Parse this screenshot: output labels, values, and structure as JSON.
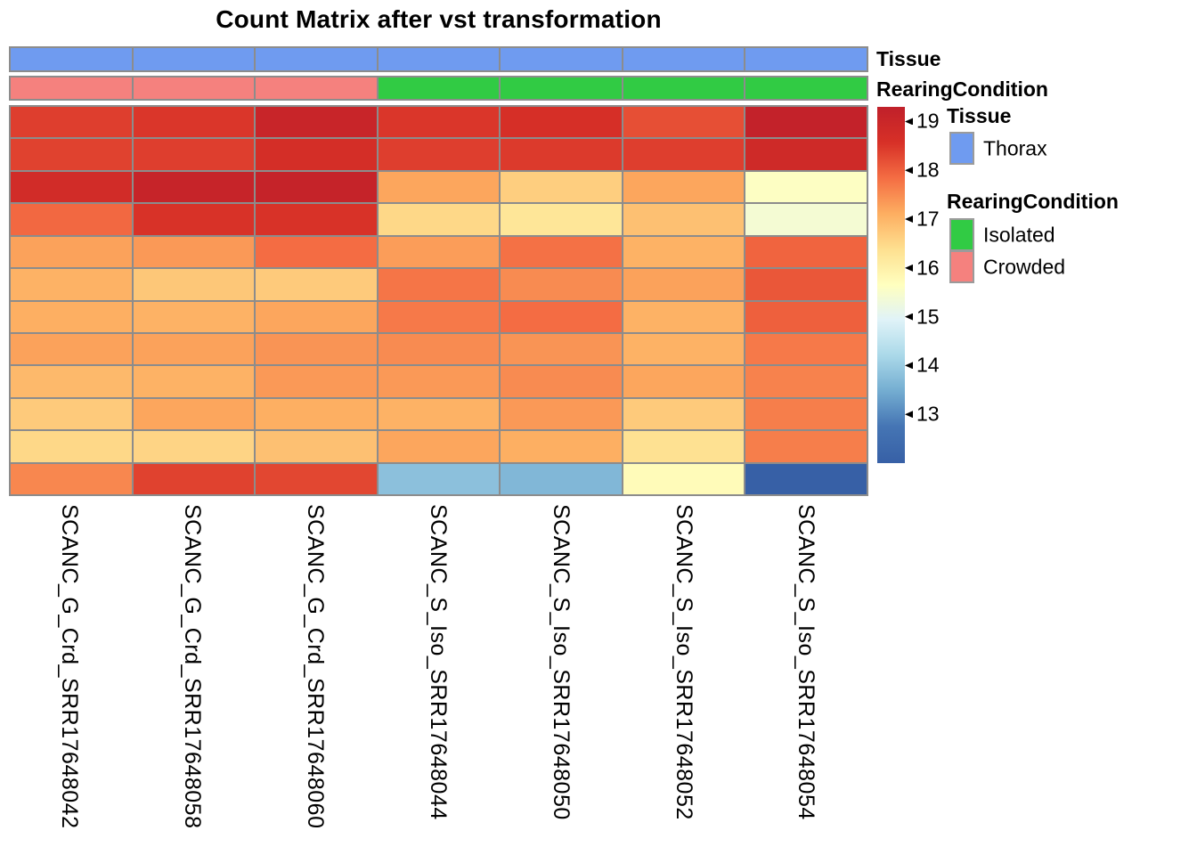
{
  "title": "Count Matrix after vst transformation",
  "annotation_bars": {
    "tissue_label": "Tissue",
    "rearing_label": "RearingCondition",
    "tissue_values": [
      "Thorax",
      "Thorax",
      "Thorax",
      "Thorax",
      "Thorax",
      "Thorax",
      "Thorax"
    ],
    "rearing_values": [
      "Crowded",
      "Crowded",
      "Crowded",
      "Isolated",
      "Isolated",
      "Isolated",
      "Isolated"
    ]
  },
  "annotation_colors": {
    "Thorax": "#6f9bf0",
    "Isolated": "#31cb44",
    "Crowded": "#f5817e"
  },
  "legend": {
    "tissue_title": "Tissue",
    "tissue_items": [
      {
        "label": "Thorax",
        "color": "#6f9bf0"
      }
    ],
    "rearing_title": "RearingCondition",
    "rearing_items": [
      {
        "label": "Isolated",
        "color": "#31cb44"
      },
      {
        "label": "Crowded",
        "color": "#f5817e"
      }
    ]
  },
  "colorbar": {
    "min": 12.0,
    "max": 19.3,
    "ticks": [
      19,
      18,
      17,
      16,
      15,
      14,
      13
    ],
    "anchors": [
      {
        "value": 12.0,
        "color": "#3760a6"
      },
      {
        "value": 12.75,
        "color": "#4575b4"
      },
      {
        "value": 13.48,
        "color": "#74add1"
      },
      {
        "value": 14.21,
        "color": "#abd9e9"
      },
      {
        "value": 14.94,
        "color": "#e0f3f8"
      },
      {
        "value": 15.65,
        "color": "#ffffbf"
      },
      {
        "value": 16.38,
        "color": "#fee090"
      },
      {
        "value": 17.11,
        "color": "#fdae61"
      },
      {
        "value": 17.84,
        "color": "#f46d43"
      },
      {
        "value": 18.57,
        "color": "#d73027"
      },
      {
        "value": 19.3,
        "color": "#c0202a"
      }
    ]
  },
  "chart_data": {
    "type": "heatmap",
    "title": "Count Matrix after vst transformation",
    "columns": [
      "SCANC_G_Crd_SRR17648042",
      "SCANC_G_Crd_SRR17648058",
      "SCANC_G_Crd_SRR17648060",
      "SCANC_S_Iso_SRR17648044",
      "SCANC_S_Iso_SRR17648050",
      "SCANC_S_Iso_SRR17648052",
      "SCANC_S_Iso_SRR17648054"
    ],
    "column_annotations": {
      "Tissue": [
        "Thorax",
        "Thorax",
        "Thorax",
        "Thorax",
        "Thorax",
        "Thorax",
        "Thorax"
      ],
      "RearingCondition": [
        "Crowded",
        "Crowded",
        "Crowded",
        "Isolated",
        "Isolated",
        "Isolated",
        "Isolated"
      ]
    },
    "values": [
      [
        18.4,
        18.5,
        19.05,
        18.5,
        18.6,
        18.2,
        19.2
      ],
      [
        18.35,
        18.4,
        18.65,
        18.4,
        18.45,
        18.4,
        18.85
      ],
      [
        18.75,
        19.1,
        19.15,
        17.2,
        16.65,
        17.2,
        15.6
      ],
      [
        17.9,
        18.55,
        18.55,
        16.5,
        16.25,
        16.85,
        15.4
      ],
      [
        17.25,
        17.35,
        17.85,
        17.3,
        17.8,
        17.05,
        17.95
      ],
      [
        17.05,
        16.75,
        16.7,
        17.75,
        17.5,
        17.25,
        18.1
      ],
      [
        17.1,
        17.05,
        17.2,
        17.7,
        17.85,
        17.05,
        18.0
      ],
      [
        17.25,
        17.25,
        17.4,
        17.5,
        17.4,
        17.05,
        17.7
      ],
      [
        16.95,
        17.05,
        17.35,
        17.35,
        17.5,
        17.2,
        17.6
      ],
      [
        16.7,
        17.2,
        17.1,
        17.05,
        17.35,
        16.7,
        17.65
      ],
      [
        16.5,
        16.55,
        16.85,
        17.2,
        17.1,
        16.35,
        17.65
      ],
      [
        17.55,
        18.35,
        18.3,
        13.8,
        13.65,
        15.75,
        12.0
      ]
    ],
    "scale": {
      "min": 12.0,
      "max": 19.3,
      "palette": "RdYlBu reversed"
    },
    "layout": {
      "rows": 12,
      "cols": 7,
      "grid_color": "#8c8c8c"
    }
  }
}
